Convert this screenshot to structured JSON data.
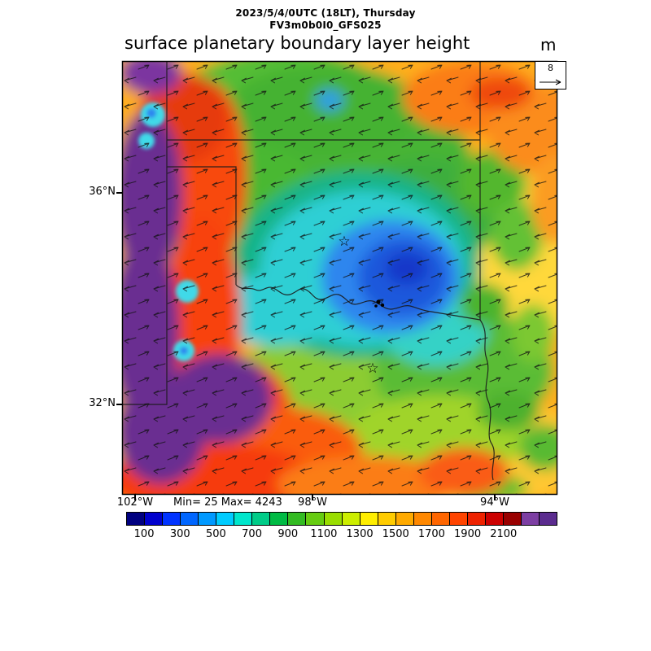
{
  "header": {
    "datetime_line": "2023/5/4/0UTC (18LT), Thursday",
    "model_line": "FV3m0b0I0_GFS025",
    "title": "surface planetary boundary layer height",
    "units": "m"
  },
  "map": {
    "y_axis_labels": [
      "36°N",
      "32°N"
    ],
    "x_axis_labels": [
      "102°W",
      "98°W",
      "94°W"
    ],
    "stats": "Min= 25 Max= 4243",
    "reference_vector": {
      "value": "8"
    }
  },
  "colorbar": {
    "tick_labels": [
      "100",
      "300",
      "500",
      "700",
      "900",
      "1100",
      "1300",
      "1500",
      "1700",
      "1900",
      "2100"
    ],
    "colors": [
      "#000080",
      "#0000cd",
      "#0033ff",
      "#0066ff",
      "#0099ff",
      "#00ccff",
      "#00e6cc",
      "#00cc88",
      "#00bb44",
      "#33bb22",
      "#66cc11",
      "#99dd00",
      "#ccee00",
      "#ffee00",
      "#ffcc00",
      "#ffaa00",
      "#ff8800",
      "#ff6600",
      "#ff4400",
      "#ee2200",
      "#cc0000",
      "#990000",
      "#7d3fa3",
      "#5b2c8f"
    ]
  },
  "chart_data": {
    "type": "heatmap",
    "title": "surface planetary boundary layer height",
    "datetime": "2023/5/4/0UTC (18LT), Thursday",
    "model_run": "FV3m0b0I0_GFS025",
    "units": "m",
    "min": 25,
    "max": 4243,
    "lat_ticks": [
      "36°N",
      "32°N"
    ],
    "lon_ticks": [
      "102°W",
      "98°W",
      "94°W"
    ],
    "colorbar_tick_values": [
      100,
      300,
      500,
      700,
      900,
      1100,
      1300,
      1500,
      1700,
      1900,
      2100
    ],
    "colorbar_interval_m": 100,
    "wind_reference_value": 8,
    "overlay": "wind vector arrows over Texas/Oklahoma region map with state borders and star city markers",
    "region_values": [
      {
        "region": "far west strip along TX-NM border",
        "pbl_height_m": ">2100 (purple)"
      },
      {
        "region": "west-central north-south band",
        "pbl_height_m": "1500-2100 (red/orange)"
      },
      {
        "region": "TX Panhandle and western Oklahoma",
        "pbl_height_m": "300-700 (green)"
      },
      {
        "region": "SW Oklahoma / Red River core",
        "pbl_height_m": "100-300 (blue minimum)"
      },
      {
        "region": "eastern Oklahoma and northeast Texas",
        "pbl_height_m": "700-1300 (yellow-green/yellow)"
      },
      {
        "region": "top-right and bottom of domain",
        "pbl_height_m": "1300-2100 (orange/red)"
      },
      {
        "region": "small cyan pockets on western band",
        "pbl_height_m": "300-500"
      }
    ],
    "legend_position": "horizontal colorbar at bottom"
  }
}
